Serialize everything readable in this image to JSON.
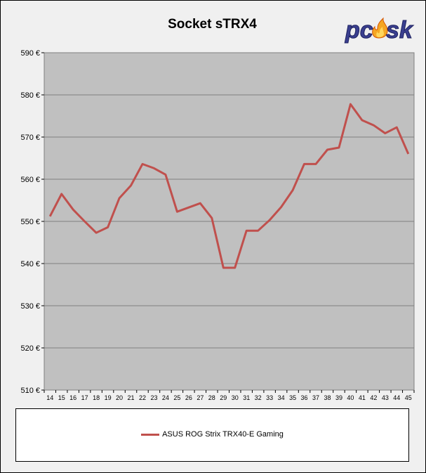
{
  "chart_data": {
    "type": "line",
    "title": "Socket sTRX4",
    "xlabel": "",
    "ylabel": "",
    "categories": [
      "14",
      "15",
      "16",
      "17",
      "18",
      "19",
      "20",
      "21",
      "22",
      "23",
      "24",
      "25",
      "26",
      "27",
      "28",
      "29",
      "30",
      "31",
      "32",
      "33",
      "34",
      "35",
      "36",
      "37",
      "38",
      "39",
      "40",
      "41",
      "42",
      "43",
      "44",
      "45"
    ],
    "series": [
      {
        "name": "ASUS ROG Strix TRX40-E Gaming",
        "color": "#c0504d",
        "values": [
          551.2,
          556.5,
          552.8,
          550.0,
          547.3,
          548.6,
          555.5,
          558.5,
          563.6,
          562.6,
          561.1,
          552.3,
          553.3,
          554.3,
          550.8,
          539.0,
          539.0,
          547.8,
          547.8,
          550.3,
          553.4,
          557.4,
          563.6,
          563.6,
          567.0,
          567.5,
          577.8,
          574.0,
          572.8,
          570.9,
          572.3,
          566.0
        ]
      }
    ],
    "ylim": [
      510,
      590
    ],
    "yticks": [
      "510 €",
      "520 €",
      "530 €",
      "540 €",
      "550 €",
      "560 €",
      "570 €",
      "580 €",
      "590 €"
    ],
    "grid": true,
    "legend_position": "bottom",
    "plot_background": "#c0c0c0"
  },
  "logo": {
    "text": "pcosk",
    "colors": {
      "main": "#3a3f8f",
      "flame": "#f5a623"
    }
  }
}
